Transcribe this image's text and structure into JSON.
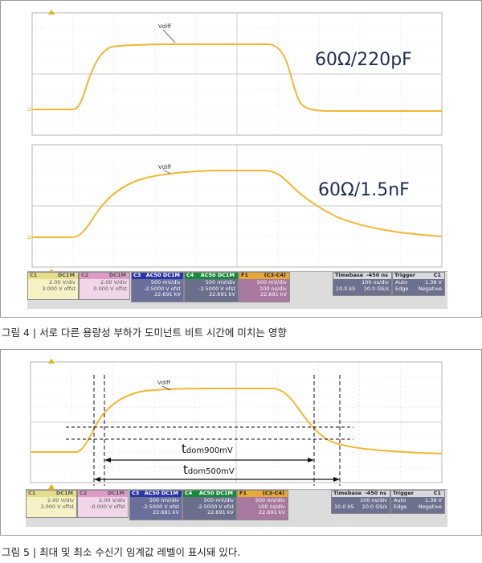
{
  "fig4": {
    "caption": "그림 4 | 서로 다른 용량성 부하가 도미넌트 비트 시간에 미치는 영향",
    "trace_label": "Vdiff",
    "top_annotation": "60Ω/220pF",
    "bottom_annotation": "60Ω/1.5nF",
    "status": {
      "c1": {
        "head": "C1",
        "tag": "DC1M",
        "lines": [
          "2.00 V/div",
          "3.000 V offst"
        ]
      },
      "c2": {
        "head": "C2",
        "tag": "DC1M",
        "lines": [
          "2.00 V/div",
          "0.000 V offst"
        ]
      },
      "c3": {
        "head": "C3",
        "tag": "AC50 DC1M",
        "lines": [
          "500 mV/div",
          "-2.5000 V ofst",
          "22.691 kV"
        ]
      },
      "c4": {
        "head": "C4",
        "tag": "AC50 DC1M",
        "lines": [
          "500 mV/div",
          "-2.5000 V ofst",
          "22.691 kV"
        ]
      },
      "f1": {
        "head": "F1",
        "tag": "(C3-C4)",
        "lines": [
          "500 mV/div",
          "100 ns/div",
          "22.691 kV"
        ]
      },
      "timebase": {
        "head": "Timebase",
        "value": "-450 ns",
        "lines_left": [
          "",
          "10.0 kS"
        ],
        "lines_right": [
          "100 ns/div",
          "10.0 GS/s"
        ]
      },
      "trigger": {
        "head": "Trigger",
        "tag": "C1",
        "lines_left": [
          "Auto",
          "Edge"
        ],
        "lines_right": [
          "1.38 V",
          "Negative"
        ]
      }
    }
  },
  "fig5": {
    "caption": "그림 5 | 최대 및 최소 수신기 임계값 레벨이 표시돼 있다.",
    "trace_label": "Vdiff",
    "t900": {
      "main": "t",
      "sub": "dom900mV"
    },
    "t500": {
      "main": "t",
      "sub": "dom500mV"
    },
    "status": {
      "c1": {
        "head": "C1",
        "tag": "DC1M",
        "lines": [
          "2.00 V/div",
          "3.000 V offst"
        ]
      },
      "c2": {
        "head": "C2",
        "tag": "DC1M",
        "lines": [
          "2.00 V/div",
          "-0.000 V offst"
        ]
      },
      "c3": {
        "head": "C3",
        "tag": "AC50 DC1M",
        "lines": [
          "500 mV/div",
          "-2.5000 V ofst",
          "22.691 kV"
        ]
      },
      "c4": {
        "head": "C4",
        "tag": "AC50 DC1M",
        "lines": [
          "500 mV/div",
          "-2.5000 V ofst",
          "22.691 kV"
        ]
      },
      "f1": {
        "head": "F1",
        "tag": "(C3-C4)",
        "lines": [
          "500 mV/div",
          "100 ns/div",
          "22.691 kV"
        ]
      },
      "timebase": {
        "head": "Timebase",
        "value": "-450 ns",
        "lines_left": [
          "",
          "10.0 kS"
        ],
        "lines_right": [
          "100 ns/div",
          "10.0 GS/s"
        ]
      },
      "trigger": {
        "head": "Trigger",
        "tag": "C1",
        "lines_left": [
          "Auto",
          "Edge"
        ],
        "lines_right": [
          "1.38 V",
          "Negative"
        ]
      }
    }
  },
  "colors": {
    "trace": "#f3b632",
    "grid": "#c9c9c9",
    "marker": "#e4b400"
  }
}
